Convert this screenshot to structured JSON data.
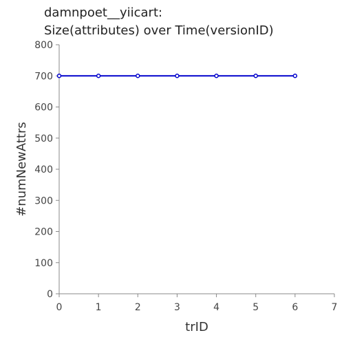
{
  "chart_data": {
    "type": "line",
    "title_line1": "damnpoet__yiicart:",
    "title_line2": "Size(attributes) over Time(versionID)",
    "xlabel": "trID",
    "ylabel": "#numNewAttrs",
    "xlim": [
      0,
      7
    ],
    "ylim": [
      0,
      800
    ],
    "x_ticks": [
      0,
      1,
      2,
      3,
      4,
      5,
      6,
      7
    ],
    "y_ticks": [
      0,
      100,
      200,
      300,
      400,
      500,
      600,
      700,
      800
    ],
    "grid": false,
    "legend": "none",
    "series": [
      {
        "color": "#0000cc",
        "x": [
          0,
          1,
          2,
          3,
          4,
          5,
          6
        ],
        "y": [
          700,
          700,
          700,
          700,
          700,
          700,
          700
        ]
      }
    ]
  }
}
